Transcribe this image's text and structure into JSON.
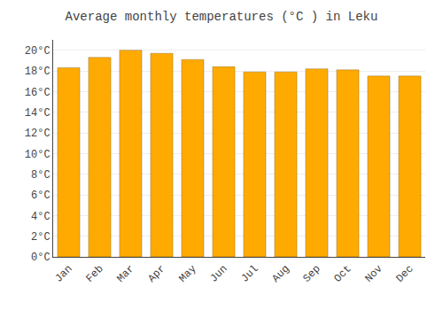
{
  "chart_data": {
    "type": "bar",
    "title": "Average monthly temperatures (°C ) in Leku",
    "categories": [
      "Jan",
      "Feb",
      "Mar",
      "Apr",
      "May",
      "Jun",
      "Jul",
      "Aug",
      "Sep",
      "Oct",
      "Nov",
      "Dec"
    ],
    "values": [
      18.3,
      19.3,
      20.0,
      19.7,
      19.1,
      18.4,
      17.9,
      17.9,
      18.2,
      18.1,
      17.5,
      17.5
    ],
    "color": "#FFAA00",
    "ylim": [
      0,
      21
    ],
    "yticks": [
      {
        "value": 0,
        "label": "0°C"
      },
      {
        "value": 2,
        "label": "2°C"
      },
      {
        "value": 4,
        "label": "4°C"
      },
      {
        "value": 6,
        "label": "6°C"
      },
      {
        "value": 8,
        "label": "8°C"
      },
      {
        "value": 10,
        "label": "10°C"
      },
      {
        "value": 12,
        "label": "12°C"
      },
      {
        "value": 14,
        "label": "14°C"
      },
      {
        "value": 16,
        "label": "16°C"
      },
      {
        "value": 18,
        "label": "18°C"
      },
      {
        "value": 20,
        "label": "20°C"
      }
    ],
    "grid": true
  }
}
